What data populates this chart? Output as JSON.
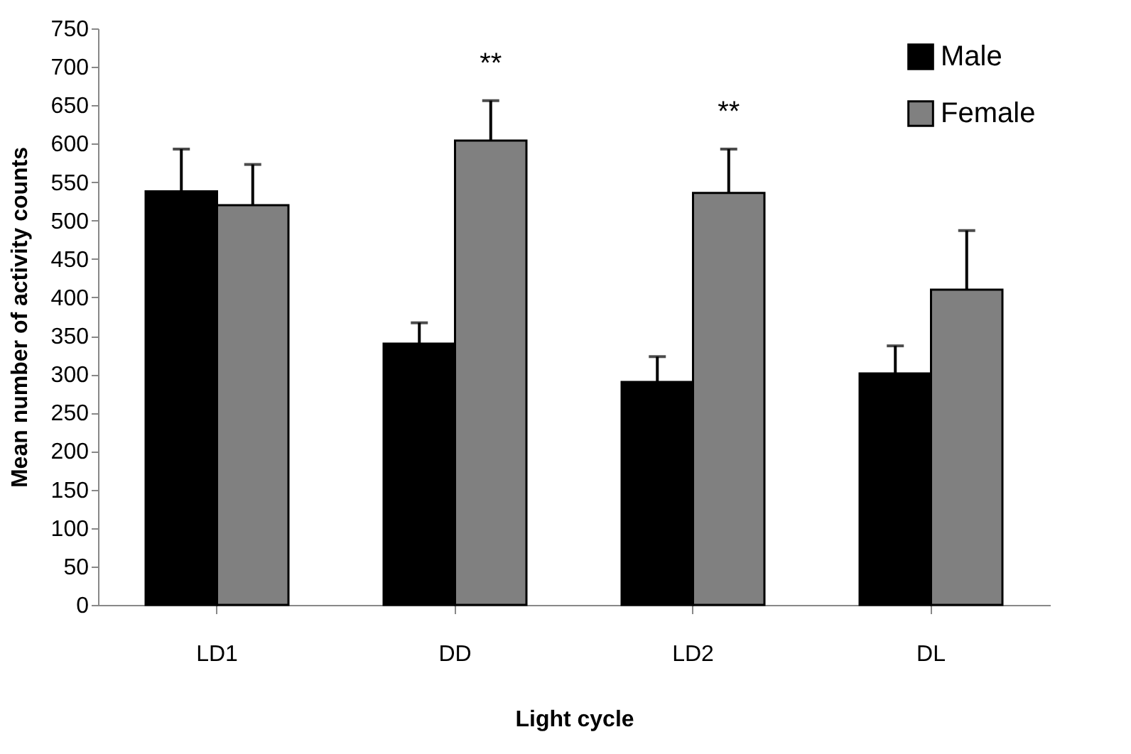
{
  "chart_data": {
    "type": "bar",
    "xlabel": "Light cycle",
    "ylabel": "Mean number of activity counts",
    "categories": [
      "LD1",
      "DD",
      "LD2",
      "DL"
    ],
    "series": [
      {
        "name": "Male",
        "color": "#000000",
        "values": [
          538,
          340,
          290,
          301
        ],
        "errors": [
          [
            538,
            593
          ],
          [
            340,
            367
          ],
          [
            290,
            323
          ],
          [
            301,
            337
          ]
        ]
      },
      {
        "name": "Female",
        "color": "#808080",
        "values": [
          520,
          604,
          536,
          410
        ],
        "errors": [
          [
            520,
            573
          ],
          [
            604,
            656
          ],
          [
            536,
            593
          ],
          [
            410,
            487
          ]
        ]
      }
    ],
    "annotations": [
      "**",
      "**"
    ],
    "ylim": [
      0,
      750
    ],
    "yticks": [
      0,
      50,
      100,
      150,
      200,
      250,
      300,
      350,
      400,
      450,
      500,
      550,
      600,
      650,
      700,
      750
    ],
    "grid": false,
    "legend": "top right"
  }
}
